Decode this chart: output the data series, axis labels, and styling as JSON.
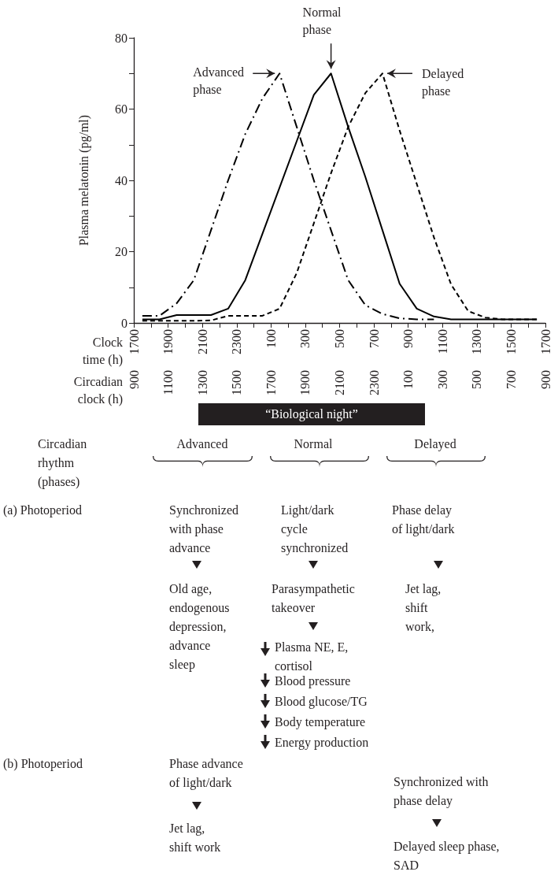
{
  "chart_data": {
    "type": "line",
    "xlabel": "Clock time (h)",
    "x2label": "Circadian clock (h)",
    "ylabel": "Plasma melatonin (pg/ml)",
    "categories": [
      "1700",
      null,
      null,
      null,
      "1900",
      null,
      null,
      null,
      "2100",
      null,
      null,
      null,
      "2300",
      null,
      null,
      null,
      "100",
      null,
      null,
      null,
      "300",
      null,
      null,
      null,
      "500",
      null,
      null,
      null,
      "700",
      null,
      null,
      null,
      "900",
      null,
      null,
      null,
      "1100",
      null,
      null,
      null,
      "1300",
      null,
      null,
      null,
      "1500",
      null,
      null,
      null,
      "1700"
    ],
    "series": [
      {
        "name": "Advanced phase",
        "color": "#000000",
        "line_style": "dashdot",
        "values": [
          null,
          2,
          null,
          2,
          null,
          5.5,
          null,
          12,
          null,
          26,
          null,
          40,
          null,
          53,
          null,
          63,
          null,
          70,
          null,
          55,
          null,
          40,
          null,
          26,
          null,
          12,
          null,
          5,
          null,
          2.5,
          null,
          1.3,
          null,
          1,
          null,
          1,
          null,
          null,
          null,
          null,
          null,
          null,
          null,
          null,
          null,
          null,
          null,
          null,
          null
        ]
      },
      {
        "name": "Normal phase",
        "color": "#000000",
        "line_style": "solid",
        "values": [
          null,
          1,
          null,
          1,
          null,
          2.2,
          null,
          2.2,
          null,
          2.2,
          null,
          4,
          null,
          12,
          null,
          25,
          null,
          38,
          null,
          51,
          null,
          64,
          null,
          70,
          null,
          55,
          null,
          41,
          null,
          26,
          null,
          11,
          null,
          4,
          null,
          1.8,
          null,
          1,
          null,
          1,
          null,
          1,
          null,
          1,
          null,
          1,
          null,
          1,
          null
        ]
      },
      {
        "name": "Delayed phase",
        "color": "#000000",
        "line_style": "dashed",
        "values": [
          null,
          0.6,
          null,
          0.6,
          null,
          0.6,
          null,
          0.6,
          null,
          0.7,
          null,
          2,
          null,
          2,
          null,
          2,
          null,
          4,
          null,
          14,
          null,
          28,
          null,
          42,
          null,
          55,
          null,
          64.5,
          null,
          70,
          null,
          54,
          null,
          39,
          null,
          24,
          null,
          10.8,
          null,
          3.3,
          null,
          1.5,
          null,
          1,
          null,
          1,
          null,
          1,
          null
        ]
      }
    ],
    "ylim": [
      0,
      80
    ],
    "yticks": [
      0,
      {
        "value": 10,
        "label": null
      },
      20,
      {
        "value": 30,
        "label": null
      },
      40,
      {
        "value": 50,
        "label": null
      },
      60,
      {
        "value": 70,
        "label": null
      },
      80
    ],
    "grid": false,
    "legend": false,
    "marker": "none",
    "annotations": [
      "“Biological night”",
      "Circadian rhythm (phases)",
      "Advanced",
      "Normal",
      "Delayed",
      "(a)  Photoperiod",
      "Synchronized with phase advance",
      "Old age, endogenous depression, advance sleep",
      "Light/dark cycle synchronized",
      "Parasympathetic takeover",
      "Plasma NE, E, cortisol",
      "Blood pressure",
      "Blood glucose/TG",
      "Body temperature",
      "Energy production",
      "Phase delay of light/dark",
      "Jet lag, shift work,",
      "(b)  Photoperiod",
      "Phase advance of light/dark",
      "Jet lag, shift work",
      "Synchronized with phase delay",
      "Delayed sleep phase, SAD",
      "900",
      "1100",
      "1300",
      "1500",
      "1700",
      "1900",
      "2100",
      "2300",
      "100",
      "300",
      "500",
      "700",
      "900"
    ]
  }
}
